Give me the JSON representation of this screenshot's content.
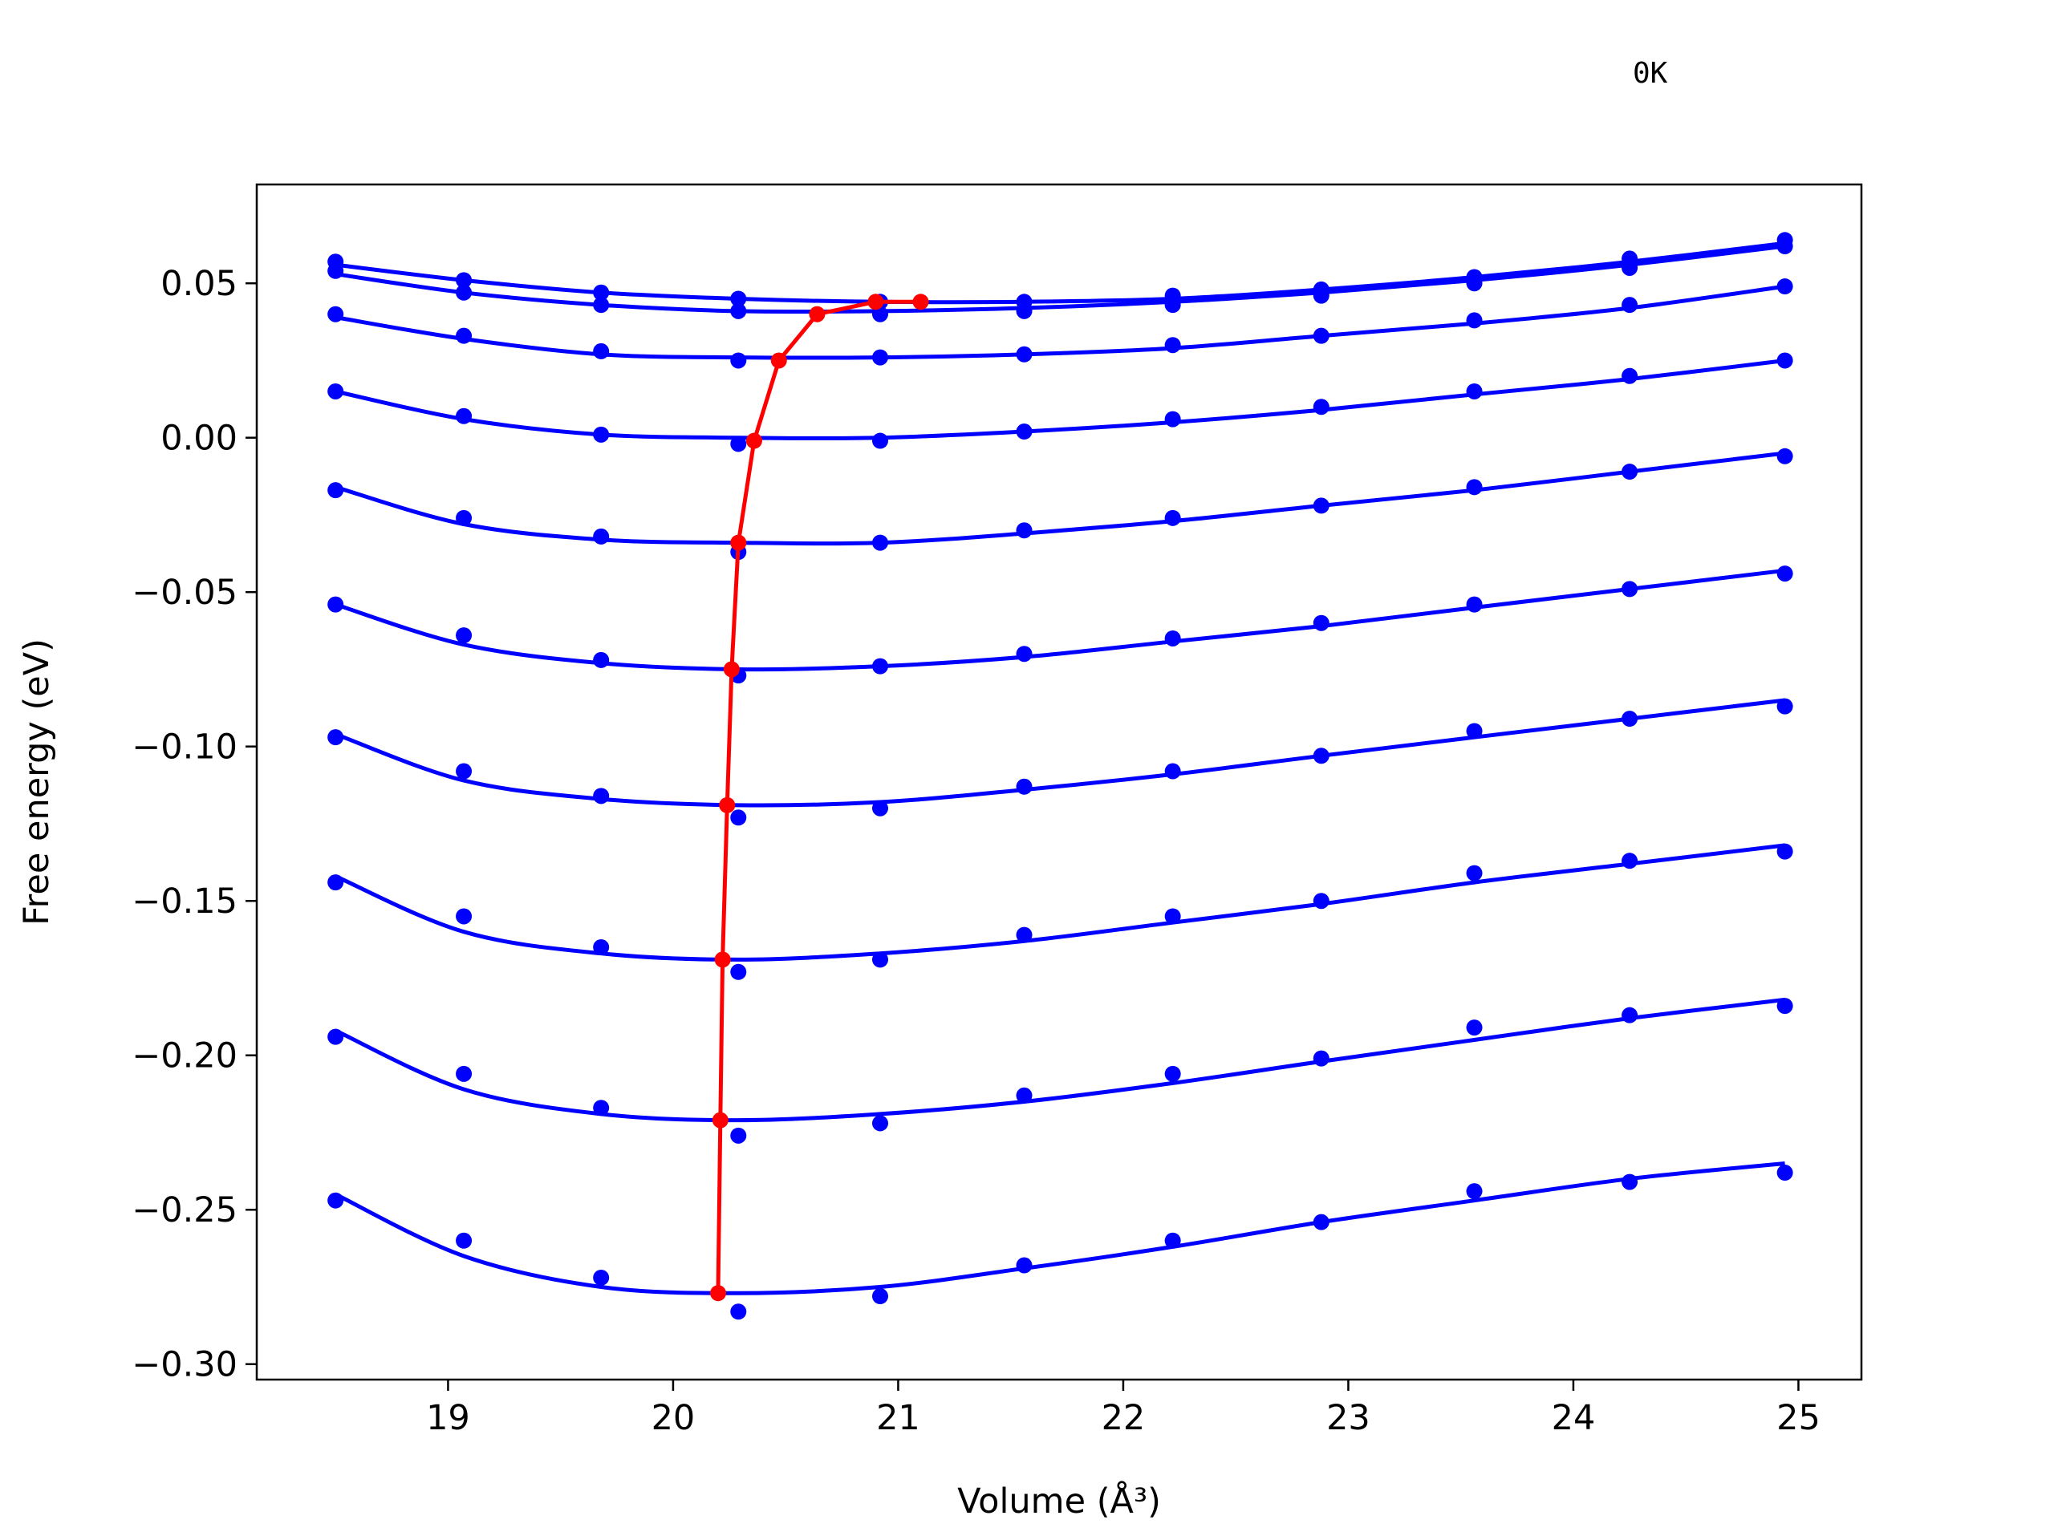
{
  "chart_data": {
    "type": "line",
    "title": "",
    "annotation": "0K",
    "xlabel": "Volume (Å³)",
    "ylabel": "Free energy (eV)",
    "xlim": [
      18.15,
      25.28
    ],
    "ylim": [
      -0.305,
      0.082
    ],
    "xticks": [
      19,
      20,
      21,
      22,
      23,
      24,
      25
    ],
    "xtick_labels": [
      "19",
      "20",
      "21",
      "22",
      "23",
      "24",
      "25"
    ],
    "yticks": [
      0.05,
      0.0,
      -0.05,
      -0.1,
      -0.15,
      -0.2,
      -0.25,
      -0.3
    ],
    "ytick_labels": [
      "0.05",
      "0.00",
      "−0.05",
      "−0.10",
      "−0.15",
      "−0.20",
      "−0.25",
      "−0.30"
    ],
    "grid": false,
    "colors": {
      "points": "#0000ff",
      "fit": "#0000ff",
      "minimum": "#ff0000"
    },
    "volumes": [
      18.5,
      19.07,
      19.68,
      20.29,
      20.92,
      21.56,
      22.22,
      22.88,
      23.56,
      24.25,
      24.94
    ],
    "series": [
      {
        "values": [
          -0.247,
          -0.26,
          -0.272,
          -0.283,
          -0.278,
          -0.268,
          -0.26,
          -0.254,
          -0.244,
          -0.241,
          -0.238
        ],
        "fit": [
          -0.245,
          -0.265,
          -0.275,
          -0.277,
          -0.275,
          -0.269,
          -0.262,
          -0.254,
          -0.247,
          -0.24,
          -0.235
        ]
      },
      {
        "values": [
          -0.194,
          -0.206,
          -0.217,
          -0.226,
          -0.222,
          -0.213,
          -0.206,
          -0.201,
          -0.191,
          -0.187,
          -0.184
        ],
        "fit": [
          -0.192,
          -0.211,
          -0.219,
          -0.221,
          -0.219,
          -0.215,
          -0.209,
          -0.202,
          -0.195,
          -0.188,
          -0.182
        ]
      },
      {
        "values": [
          -0.144,
          -0.155,
          -0.165,
          -0.173,
          -0.169,
          -0.161,
          -0.155,
          -0.15,
          -0.141,
          -0.137,
          -0.134
        ],
        "fit": [
          -0.142,
          -0.16,
          -0.167,
          -0.169,
          -0.167,
          -0.163,
          -0.157,
          -0.151,
          -0.144,
          -0.138,
          -0.132
        ]
      },
      {
        "values": [
          -0.097,
          -0.108,
          -0.116,
          -0.123,
          -0.12,
          -0.113,
          -0.108,
          -0.103,
          -0.095,
          -0.091,
          -0.087
        ],
        "fit": [
          -0.096,
          -0.111,
          -0.117,
          -0.119,
          -0.118,
          -0.114,
          -0.109,
          -0.103,
          -0.097,
          -0.091,
          -0.085
        ]
      },
      {
        "values": [
          -0.054,
          -0.064,
          -0.072,
          -0.077,
          -0.074,
          -0.07,
          -0.065,
          -0.06,
          -0.054,
          -0.049,
          -0.044
        ],
        "fit": [
          -0.054,
          -0.067,
          -0.073,
          -0.075,
          -0.074,
          -0.071,
          -0.066,
          -0.061,
          -0.055,
          -0.049,
          -0.043
        ]
      },
      {
        "values": [
          -0.017,
          -0.026,
          -0.032,
          -0.037,
          -0.034,
          -0.03,
          -0.026,
          -0.022,
          -0.016,
          -0.011,
          -0.006
        ],
        "fit": [
          -0.016,
          -0.028,
          -0.033,
          -0.034,
          -0.034,
          -0.031,
          -0.027,
          -0.022,
          -0.017,
          -0.011,
          -0.005
        ]
      },
      {
        "values": [
          0.015,
          0.007,
          0.001,
          -0.002,
          -0.001,
          0.002,
          0.006,
          0.01,
          0.015,
          0.02,
          0.025
        ],
        "fit": [
          0.015,
          0.006,
          0.001,
          0.0,
          0.0,
          0.002,
          0.005,
          0.009,
          0.014,
          0.019,
          0.025
        ]
      },
      {
        "values": [
          0.04,
          0.033,
          0.028,
          0.025,
          0.026,
          0.027,
          0.03,
          0.033,
          0.038,
          0.043,
          0.049
        ],
        "fit": [
          0.039,
          0.032,
          0.027,
          0.026,
          0.026,
          0.027,
          0.029,
          0.033,
          0.037,
          0.042,
          0.049
        ]
      },
      {
        "values": [
          0.054,
          0.047,
          0.043,
          0.041,
          0.04,
          0.041,
          0.043,
          0.046,
          0.05,
          0.055,
          0.062
        ],
        "fit": [
          0.053,
          0.047,
          0.043,
          0.041,
          0.041,
          0.042,
          0.044,
          0.047,
          0.051,
          0.056,
          0.062
        ]
      },
      {
        "values": [
          0.057,
          0.051,
          0.047,
          0.045,
          0.044,
          0.044,
          0.046,
          0.048,
          0.052,
          0.058,
          0.064
        ],
        "fit": [
          0.056,
          0.051,
          0.047,
          0.045,
          0.044,
          0.044,
          0.045,
          0.048,
          0.052,
          0.057,
          0.063
        ]
      }
    ],
    "minimum_curve": {
      "x": [
        20.2,
        20.21,
        20.22,
        20.24,
        20.26,
        20.29,
        20.36,
        20.47,
        20.64,
        20.9,
        21.1
      ],
      "y": [
        -0.277,
        -0.221,
        -0.169,
        -0.119,
        -0.075,
        -0.034,
        -0.001,
        0.025,
        0.04,
        0.044,
        0.044
      ]
    }
  }
}
